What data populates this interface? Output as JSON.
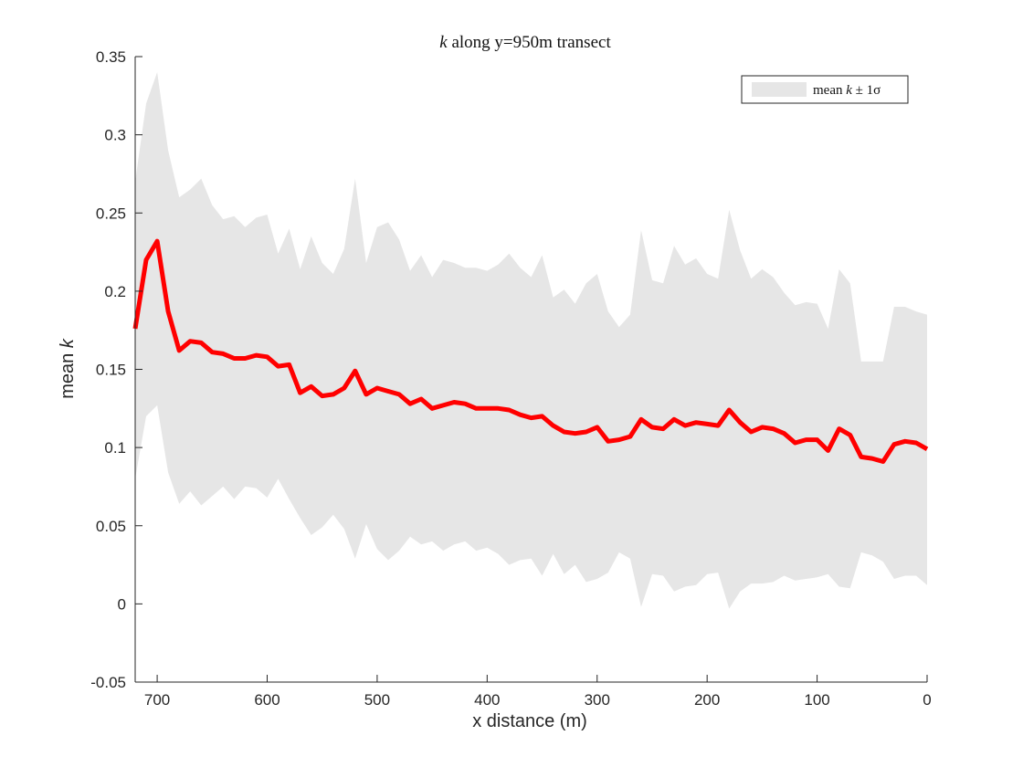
{
  "chart_data": {
    "type": "area",
    "title_prefix": "k",
    "title_rest": " along y=950m transect",
    "xlabel": "x distance (m)",
    "ylabel_prefix": "mean ",
    "ylabel_var": "k",
    "xlim": [
      720,
      0
    ],
    "ylim": [
      -0.05,
      0.35
    ],
    "x_reversed": true,
    "x_ticks": [
      700,
      600,
      500,
      400,
      300,
      200,
      100,
      0
    ],
    "x_tick_labels": [
      "700",
      "600",
      "500",
      "400",
      "300",
      "200",
      "100",
      "0"
    ],
    "y_ticks": [
      -0.05,
      0,
      0.05,
      0.1,
      0.15,
      0.2,
      0.25,
      0.3,
      0.35
    ],
    "y_tick_labels": [
      "-0.05",
      "0",
      "0.05",
      "0.1",
      "0.15",
      "0.2",
      "0.25",
      "0.3",
      "0.35"
    ],
    "grid": false,
    "legend": {
      "placement": "top-right",
      "prefix": "mean ",
      "var": "k",
      "suffix": " ± 1σ"
    },
    "colors": {
      "mean_line": "#ff0000",
      "band": "#e6e6e6",
      "axis": "#262626"
    },
    "series": [
      {
        "role": "mean",
        "x": [
          720,
          710,
          700,
          690,
          680,
          670,
          660,
          650,
          640,
          630,
          620,
          610,
          600,
          590,
          580,
          570,
          560,
          550,
          540,
          530,
          520,
          510,
          500,
          490,
          480,
          470,
          460,
          450,
          440,
          430,
          420,
          410,
          400,
          390,
          380,
          370,
          360,
          350,
          340,
          330,
          320,
          310,
          300,
          290,
          280,
          270,
          260,
          250,
          240,
          230,
          220,
          210,
          200,
          190,
          180,
          170,
          160,
          150,
          140,
          130,
          120,
          110,
          100,
          90,
          80,
          70,
          60,
          50,
          40,
          30,
          20,
          10,
          0
        ],
        "values": [
          0.176,
          0.22,
          0.232,
          0.187,
          0.162,
          0.168,
          0.167,
          0.161,
          0.16,
          0.157,
          0.157,
          0.159,
          0.158,
          0.152,
          0.153,
          0.135,
          0.139,
          0.133,
          0.134,
          0.138,
          0.149,
          0.134,
          0.138,
          0.136,
          0.134,
          0.128,
          0.131,
          0.125,
          0.127,
          0.129,
          0.128,
          0.125,
          0.125,
          0.125,
          0.124,
          0.121,
          0.119,
          0.12,
          0.114,
          0.11,
          0.109,
          0.11,
          0.113,
          0.104,
          0.105,
          0.107,
          0.118,
          0.113,
          0.112,
          0.118,
          0.114,
          0.116,
          0.115,
          0.114,
          0.124,
          0.116,
          0.11,
          0.113,
          0.112,
          0.109,
          0.103,
          0.105,
          0.105,
          0.098,
          0.112,
          0.108,
          0.094,
          0.093,
          0.091,
          0.102,
          0.104,
          0.103,
          0.099
        ]
      },
      {
        "role": "upper",
        "values": [
          0.27,
          0.32,
          0.34,
          0.29,
          0.26,
          0.265,
          0.272,
          0.255,
          0.246,
          0.248,
          0.241,
          0.247,
          0.249,
          0.224,
          0.24,
          0.214,
          0.235,
          0.218,
          0.211,
          0.227,
          0.272,
          0.218,
          0.241,
          0.244,
          0.233,
          0.213,
          0.223,
          0.209,
          0.22,
          0.218,
          0.215,
          0.215,
          0.213,
          0.217,
          0.224,
          0.215,
          0.209,
          0.223,
          0.196,
          0.201,
          0.192,
          0.205,
          0.211,
          0.187,
          0.177,
          0.185,
          0.239,
          0.207,
          0.205,
          0.229,
          0.217,
          0.221,
          0.211,
          0.208,
          0.252,
          0.226,
          0.208,
          0.214,
          0.209,
          0.199,
          0.191,
          0.193,
          0.192,
          0.176,
          0.214,
          0.205,
          0.155,
          0.155,
          0.155,
          0.19,
          0.19,
          0.187,
          0.185
        ]
      },
      {
        "role": "lower",
        "values": [
          0.08,
          0.12,
          0.127,
          0.084,
          0.064,
          0.072,
          0.063,
          0.069,
          0.075,
          0.067,
          0.075,
          0.074,
          0.068,
          0.08,
          0.067,
          0.055,
          0.044,
          0.049,
          0.057,
          0.048,
          0.029,
          0.051,
          0.035,
          0.028,
          0.034,
          0.043,
          0.038,
          0.04,
          0.034,
          0.038,
          0.04,
          0.034,
          0.036,
          0.032,
          0.025,
          0.028,
          0.029,
          0.018,
          0.032,
          0.019,
          0.025,
          0.014,
          0.016,
          0.02,
          0.033,
          0.029,
          -0.002,
          0.019,
          0.018,
          0.008,
          0.011,
          0.012,
          0.019,
          0.02,
          -0.003,
          0.008,
          0.013,
          0.013,
          0.014,
          0.018,
          0.015,
          0.016,
          0.017,
          0.019,
          0.011,
          0.01,
          0.033,
          0.031,
          0.027,
          0.016,
          0.018,
          0.018,
          0.012
        ]
      }
    ]
  }
}
